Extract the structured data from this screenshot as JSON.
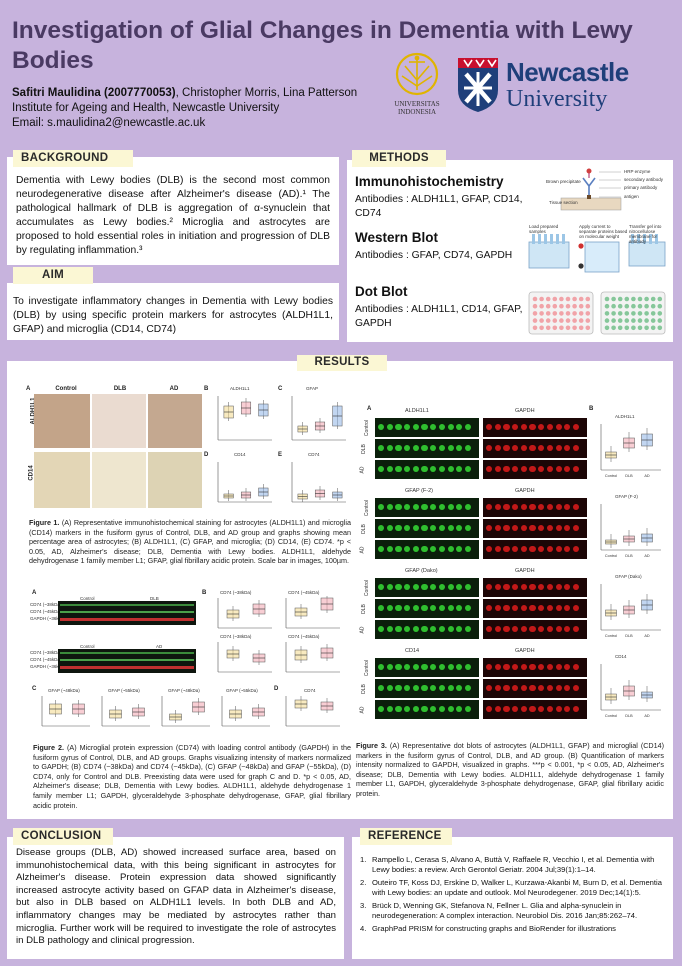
{
  "header": {
    "title": "Investigation of Glial Changes in Dementia with Lewy Bodies",
    "author_main": "Safitri Maulidina (2007770053)",
    "author_rest": ", Christopher Morris, Lina Patterson",
    "institute": "Institute for Ageing and Health, Newcastle University",
    "email": "Email: s.maulidina2@newcastle.ac.uk",
    "logo_ui_text": "UNIVERSITAS INDONESIA",
    "logo_nu_text1": "Newcastle",
    "logo_nu_text2": "University"
  },
  "background": {
    "heading": "BACKGROUND",
    "text": "Dementia with Lewy bodies (DLB) is the second most common neurodegenerative disease after Alzheimer's disease (AD).¹ The pathological hallmark of DLB is aggregation of α-synuclein that accumulates as Lewy bodies.² Microglia and astrocytes are proposed to hold essential roles in initiation and progression of DLB by regulating inflammation.³"
  },
  "aim": {
    "heading": "AIM",
    "text": "To investigate inflammatory changes in Dementia with Lewy bodies (DLB) by using specific protein markers for astrocytes (ALDH1L1, GFAP) and microglia (CD14, CD74)"
  },
  "methods": {
    "heading": "METHODS",
    "items": [
      {
        "title": "Immunohistochemistry",
        "text": "Antibodies : ALDH1L1, GFAP, CD14, CD74"
      },
      {
        "title": "Western Blot",
        "text": "Antibodies : GFAP, CD74, GAPDH"
      },
      {
        "title": "Dot Blot",
        "text": "Antibodies : ALDH1L1, CD14, GFAP, GAPDH"
      }
    ],
    "diagram_labels": [
      "HRP enzyme",
      "secondary antibody",
      "primary antibody",
      "Brown precipitate",
      "antigen",
      "Tissue section",
      "Load prepared samples",
      "Apply current to separate proteins based on molecular weight",
      "Transfer gel into nitrocellulose membrane for antibody"
    ]
  },
  "results": {
    "heading": "RESULTS",
    "fig1": {
      "panel_letters": [
        "A",
        "B",
        "C",
        "D",
        "E"
      ],
      "col_labels": [
        "Control",
        "DLB",
        "AD"
      ],
      "row_labels": [
        "ALDH1L1",
        "CD14"
      ],
      "graph_titles": [
        "ALDH1L1",
        "GFAP",
        "CD14",
        "CD74"
      ],
      "caption_bold": "Figure 1.",
      "caption": " (A) Representative immunohistochemical staining for astrocytes (ALDH1L1) and microglia (CD14) markers in the fusiform gyrus of Control, DLB, and AD group and graphs showing mean percentage area of astrocytes; (B) ALDH1L1, (C) GFAP, and microglia; (D) CD14, (E) CD74. *p < 0.05, AD, Alzheimer's disease; DLB, Dementia with Lewy bodies. ALDH1L1, aldehyde dehydrogenase 1 family member L1; GFAP, glial fibrillary acidic protein. Scale bar in images, 100µm."
    },
    "fig2": {
      "panel_letters": [
        "A",
        "B",
        "C",
        "D"
      ],
      "blot_headers": [
        "Control",
        "DLB",
        "Control",
        "AD"
      ],
      "blot_rows": [
        "CD74 (~38kDa)",
        "CD74 (~45kDa)",
        "GAPDH (~36kDa)"
      ],
      "graph_titles": [
        "CD74 (~38kDa)",
        "CD74 (~45kDa)",
        "CD74 (~38kDa)",
        "CD74 (~45kDa)",
        "GFAP (~48kDa)",
        "GFAP (~55kDa)",
        "GFAP (~48kDa)",
        "GFAP (~55kDa)",
        "CD74"
      ],
      "caption_bold": "Figure 2.",
      "caption": " (A) Microglial protein expression (CD74) with loading control antibody (GAPDH) in the fusiform gyrus of Control, DLB, and AD groups. Graphs visualizing intensity of markers normalized to GAPDH; (B) CD74 (~38kDa) and CD74 (~45kDa), (C) GFAP (~48kDa) and GFAP (~55kDa), (D) CD74, only for Control and DLB. Preexisting data were used for graph C and D. *p < 0.05, AD, Alzheimer's disease; DLB, Dementia with Lewy bodies. ALDH1L1, aldehyde dehydrogenase 1 family member L1; GAPDH, glyceraldehyde 3-phosphate dehydrogenase, GFAP, glial fibrillary acidic protein."
    },
    "fig3": {
      "panel_letters": [
        "A",
        "B"
      ],
      "blocks": [
        {
          "left": "ALDH1L1",
          "right": "GAPDH",
          "graph": "ALDH1L1"
        },
        {
          "left": "GFAP (F-2)",
          "right": "GAPDH",
          "graph": "GFAP (F-2)"
        },
        {
          "left": "GFAP (Dako)",
          "right": "GAPDH",
          "graph": "GFAP (Dako)"
        },
        {
          "left": "CD14",
          "right": "GAPDH",
          "graph": "CD14"
        }
      ],
      "row_labels": [
        "Control",
        "DLB",
        "AD"
      ],
      "caption_bold": "Figure 3.",
      "caption": " (A) Representative dot blots of astrocytes (ALDH1L1, GFAP) and microglial (CD14) markers in the fusiform gyrus of Control, DLB, and AD group. (B) Quantification of markers intensity normalized to GAPDH, visualized in graphs. ***p < 0.001, *p < 0.05, AD, Alzheimer's disease; DLB, Dementia with Lewy bodies. ALDH1L1, aldehyde dehydrogenase 1 family member L1, GAPDH, glyceraldehyde 3-phosphate dehydrogenase, GFAP, glial fibrillary acidic protein."
    },
    "axis_groups": [
      "Control",
      "DLB",
      "AD"
    ]
  },
  "conclusion": {
    "heading": "CONCLUSION",
    "text": "Disease groups (DLB, AD) showed increased surface area, based on immunohistochemical data, with this being significant in astrocytes for Alzheimer's disease. Protein expression data showed significantly increased astrocyte activity based on GFAP data in Alzheimer's disease, but also in DLB based on ALDH1L1 levels. In both DLB and AD, inflammatory changes may be mediated by astrocytes rather than microglia. Further work will be required to investigate the role of astrocytes in DLB pathology and clinical progression."
  },
  "reference": {
    "heading": "REFERENCE",
    "items": [
      {
        "num": "1.",
        "text": "Rampello L, Cerasa S, Alvano A, Buttà V, Raffaele R, Vecchio I, et al. Dementia with Lewy bodies: a review. Arch Gerontol Geriatr. 2004 Jul;39(1):1–14."
      },
      {
        "num": "2.",
        "text": "Outeiro TF, Koss DJ, Erskine D, Walker L, Kurzawa-Akanbi M, Burn D, et al. Dementia with Lewy bodies: an update and outlook. Mol Neurodegener. 2019 Dec;14(1):5."
      },
      {
        "num": "3.",
        "text": "Brück D, Wenning GK, Stefanova N, Fellner L. Glia and alpha-synuclein in neurodegeneration: A complex interaction. Neurobiol Dis. 2016 Jan;85:262–74."
      },
      {
        "num": "4.",
        "text": "GraphPad PRISM for constructing graphs and BioRender for illustrations"
      }
    ]
  },
  "colors": {
    "background": "#c7b3dd",
    "title": "#4a3a63",
    "header_box": "#fbf7d4",
    "nu_blue": "#1f3f7a",
    "box_pink": "#f2a6b0",
    "box_blue": "#8fb5e6",
    "box_yellow": "#f3d98c"
  }
}
